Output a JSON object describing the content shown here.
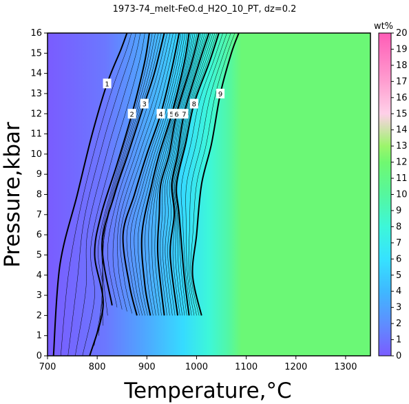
{
  "chart_data": {
    "type": "heatmap",
    "title": "1973-74_melt-FeO.d_H2O_10_PT, dz=0.2",
    "xlabel": "Temperature,°C",
    "ylabel": "Pressure,kbar",
    "xlim": [
      700,
      1350
    ],
    "ylim": [
      0,
      16
    ],
    "xticks": [
      700,
      800,
      900,
      1000,
      1100,
      1200,
      1300
    ],
    "yticks": [
      0,
      1,
      2,
      3,
      4,
      5,
      6,
      7,
      8,
      9,
      10,
      11,
      12,
      13,
      14,
      15,
      16
    ],
    "colorbar": {
      "label": "wt%",
      "range": [
        0,
        20
      ],
      "ticks": [
        0,
        1,
        2,
        3,
        4,
        5,
        6,
        7,
        8,
        9,
        10,
        11,
        12,
        13,
        14,
        15,
        16,
        17,
        18,
        19,
        20
      ]
    },
    "contour_interval": 0.2,
    "major_contours": [
      {
        "level": 1,
        "label": "1",
        "points": [
          [
            712,
            0
          ],
          [
            725,
            4.5
          ],
          [
            760,
            8
          ],
          [
            790,
            11
          ],
          [
            820,
            13.5
          ],
          [
            848,
            15.2
          ],
          [
            860,
            16
          ]
        ]
      },
      {
        "level": 2,
        "label": "2",
        "points": [
          [
            785,
            0
          ],
          [
            812,
            2.5
          ],
          [
            795,
            5
          ],
          [
            808,
            7
          ],
          [
            840,
            9.5
          ],
          [
            870,
            12
          ],
          [
            895,
            14.5
          ],
          [
            905,
            16
          ]
        ]
      },
      {
        "level": 3,
        "label": "3",
        "points": [
          [
            830,
            2.5
          ],
          [
            810,
            5.5
          ],
          [
            835,
            8
          ],
          [
            862,
            10
          ],
          [
            895,
            12.5
          ],
          [
            915,
            14
          ],
          [
            935,
            16
          ]
        ]
      },
      {
        "level": 4,
        "label": "4",
        "points": [
          [
            880,
            2
          ],
          [
            865,
            3.5
          ],
          [
            852,
            6
          ],
          [
            875,
            8
          ],
          [
            900,
            10
          ],
          [
            928,
            12
          ],
          [
            950,
            14.2
          ],
          [
            965,
            16
          ]
        ]
      },
      {
        "level": 5,
        "label": "5",
        "points": [
          [
            907,
            2
          ],
          [
            896,
            3.5
          ],
          [
            890,
            6
          ],
          [
            910,
            8.5
          ],
          [
            925,
            10
          ],
          [
            950,
            12
          ],
          [
            975,
            14.5
          ],
          [
            985,
            16
          ]
        ]
      },
      {
        "level": 6,
        "label": "6",
        "points": [
          [
            935,
            2
          ],
          [
            922,
            5
          ],
          [
            925,
            7
          ],
          [
            928,
            8.5
          ],
          [
            945,
            10
          ],
          [
            960,
            12
          ],
          [
            990,
            14.5
          ],
          [
            1005,
            16
          ]
        ]
      },
      {
        "level": 7,
        "label": "7",
        "points": [
          [
            962,
            2
          ],
          [
            947,
            5
          ],
          [
            955,
            7
          ],
          [
            950,
            8.5
          ],
          [
            962,
            10
          ],
          [
            975,
            12
          ],
          [
            1005,
            14.5
          ],
          [
            1025,
            16
          ]
        ]
      },
      {
        "level": 8,
        "label": "8",
        "points": [
          [
            985,
            2
          ],
          [
            975,
            4
          ],
          [
            965,
            7
          ],
          [
            960,
            8.5
          ],
          [
            978,
            10.5
          ],
          [
            995,
            12.5
          ],
          [
            1025,
            14.5
          ],
          [
            1045,
            16
          ]
        ]
      },
      {
        "level": 9,
        "label": "9",
        "points": [
          [
            1010,
            2
          ],
          [
            992,
            4
          ],
          [
            1000,
            6
          ],
          [
            1010,
            8.5
          ],
          [
            1030,
            10.5
          ],
          [
            1048,
            13
          ],
          [
            1070,
            15
          ],
          [
            1085,
            16
          ]
        ]
      }
    ]
  }
}
